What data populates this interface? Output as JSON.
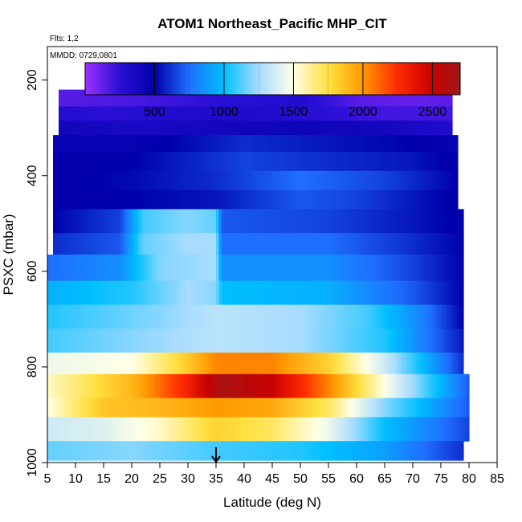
{
  "chart_data": {
    "type": "heatmap",
    "title": "ATOM1 Northeast_Pacific MHP_CIT",
    "flights_label": "Flts: 1,2",
    "mmdd_label": "MMDD: 0729,0801",
    "xlabel": "Latitude (deg N)",
    "ylabel": "PSXC (mbar)",
    "xlim": [
      5,
      85
    ],
    "ylim": [
      1000,
      130
    ],
    "x_ticks": [
      "5",
      "10",
      "15",
      "20",
      "25",
      "30",
      "35",
      "40",
      "45",
      "50",
      "55",
      "60",
      "65",
      "70",
      "75",
      "80",
      "85"
    ],
    "y_ticks": [
      "200",
      "400",
      "600",
      "800",
      "1000"
    ],
    "colorbar": {
      "range": [
        0,
        2700
      ],
      "ticks": [
        "500",
        "1000",
        "1500",
        "2000",
        "2500"
      ],
      "stops": [
        {
          "v": 0,
          "c": "#9b30ff"
        },
        {
          "v": 250,
          "c": "#2a0fd6"
        },
        {
          "v": 500,
          "c": "#0000aa"
        },
        {
          "v": 750,
          "c": "#1f6fff"
        },
        {
          "v": 1000,
          "c": "#00bfff"
        },
        {
          "v": 1250,
          "c": "#a8dcff"
        },
        {
          "v": 1500,
          "c": "#ffffe6"
        },
        {
          "v": 1750,
          "c": "#ffe040"
        },
        {
          "v": 2000,
          "c": "#ff9a00"
        },
        {
          "v": 2250,
          "c": "#ff2a00"
        },
        {
          "v": 2500,
          "c": "#c80000"
        },
        {
          "v": 2700,
          "c": "#a01818"
        }
      ]
    },
    "marker_latitude": 35,
    "layers": [
      {
        "p_top": 220,
        "p_bot": 255,
        "lat_min": 7,
        "lat_max": 77,
        "profile": [
          [
            7,
            150
          ],
          [
            20,
            180
          ],
          [
            35,
            250
          ],
          [
            50,
            300
          ],
          [
            60,
            150
          ],
          [
            70,
            120
          ],
          [
            77,
            150
          ]
        ]
      },
      {
        "p_top": 255,
        "p_bot": 285,
        "lat_min": 7,
        "lat_max": 77,
        "profile": [
          [
            7,
            300
          ],
          [
            15,
            250
          ],
          [
            25,
            300
          ],
          [
            40,
            320
          ],
          [
            55,
            250
          ],
          [
            65,
            200
          ],
          [
            77,
            200
          ]
        ]
      },
      {
        "p_top": 285,
        "p_bot": 315,
        "lat_min": 7,
        "lat_max": 77,
        "profile": [
          [
            7,
            400
          ],
          [
            20,
            350
          ],
          [
            35,
            380
          ],
          [
            50,
            420
          ],
          [
            65,
            380
          ],
          [
            77,
            300
          ]
        ]
      },
      {
        "p_top": 315,
        "p_bot": 350,
        "lat_min": 6,
        "lat_max": 78,
        "profile": [
          [
            6,
            450
          ],
          [
            20,
            450
          ],
          [
            40,
            600
          ],
          [
            55,
            550
          ],
          [
            70,
            500
          ],
          [
            78,
            450
          ]
        ]
      },
      {
        "p_top": 350,
        "p_bot": 390,
        "lat_min": 6,
        "lat_max": 78,
        "profile": [
          [
            6,
            480
          ],
          [
            20,
            500
          ],
          [
            40,
            650
          ],
          [
            55,
            600
          ],
          [
            70,
            550
          ],
          [
            78,
            480
          ]
        ]
      },
      {
        "p_top": 390,
        "p_bot": 430,
        "lat_min": 6,
        "lat_max": 78,
        "profile": [
          [
            6,
            480
          ],
          [
            20,
            520
          ],
          [
            35,
            600
          ],
          [
            50,
            750
          ],
          [
            65,
            650
          ],
          [
            78,
            500
          ]
        ]
      },
      {
        "p_top": 430,
        "p_bot": 470,
        "lat_min": 6,
        "lat_max": 78,
        "profile": [
          [
            6,
            480
          ],
          [
            20,
            500
          ],
          [
            35,
            550
          ],
          [
            50,
            700
          ],
          [
            60,
            650
          ],
          [
            78,
            480
          ]
        ]
      },
      {
        "p_top": 470,
        "p_bot": 520,
        "lat_min": 6,
        "lat_max": 79,
        "profile": [
          [
            6,
            500
          ],
          [
            18,
            650
          ],
          [
            22,
            1100
          ],
          [
            30,
            1200
          ],
          [
            35,
            1150
          ],
          [
            36,
            700
          ],
          [
            55,
            650
          ],
          [
            70,
            550
          ],
          [
            79,
            480
          ]
        ]
      },
      {
        "p_top": 520,
        "p_bot": 565,
        "lat_min": 6,
        "lat_max": 79,
        "profile": [
          [
            6,
            600
          ],
          [
            18,
            700
          ],
          [
            22,
            1150
          ],
          [
            30,
            1250
          ],
          [
            35,
            1250
          ],
          [
            36,
            750
          ],
          [
            55,
            750
          ],
          [
            70,
            600
          ],
          [
            79,
            500
          ]
        ]
      },
      {
        "p_top": 565,
        "p_bot": 620,
        "lat_min": 5,
        "lat_max": 79,
        "profile": [
          [
            5,
            750
          ],
          [
            18,
            850
          ],
          [
            25,
            1200
          ],
          [
            35,
            1250
          ],
          [
            36,
            850
          ],
          [
            55,
            850
          ],
          [
            70,
            650
          ],
          [
            79,
            500
          ]
        ]
      },
      {
        "p_top": 620,
        "p_bot": 670,
        "lat_min": 5,
        "lat_max": 79,
        "profile": [
          [
            5,
            950
          ],
          [
            20,
            1050
          ],
          [
            30,
            1250
          ],
          [
            35,
            1200
          ],
          [
            36,
            1000
          ],
          [
            55,
            950
          ],
          [
            70,
            700
          ],
          [
            79,
            500
          ]
        ]
      },
      {
        "p_top": 670,
        "p_bot": 720,
        "lat_min": 5,
        "lat_max": 79,
        "profile": [
          [
            5,
            1050
          ],
          [
            25,
            1200
          ],
          [
            35,
            1300
          ],
          [
            50,
            1250
          ],
          [
            62,
            1100
          ],
          [
            72,
            800
          ],
          [
            79,
            500
          ]
        ]
      },
      {
        "p_top": 720,
        "p_bot": 770,
        "lat_min": 5,
        "lat_max": 79,
        "profile": [
          [
            5,
            1100
          ],
          [
            20,
            1200
          ],
          [
            35,
            1300
          ],
          [
            50,
            1250
          ],
          [
            65,
            1050
          ],
          [
            79,
            550
          ]
        ]
      },
      {
        "p_top": 770,
        "p_bot": 815,
        "lat_min": 5,
        "lat_max": 79,
        "profile": [
          [
            5,
            1450
          ],
          [
            20,
            1500
          ],
          [
            28,
            1750
          ],
          [
            35,
            2050
          ],
          [
            45,
            2050
          ],
          [
            55,
            1800
          ],
          [
            65,
            1350
          ],
          [
            79,
            600
          ]
        ]
      },
      {
        "p_top": 815,
        "p_bot": 865,
        "lat_min": 5,
        "lat_max": 80,
        "profile": [
          [
            5,
            1550
          ],
          [
            20,
            1900
          ],
          [
            30,
            2300
          ],
          [
            36,
            2650
          ],
          [
            45,
            2500
          ],
          [
            55,
            2050
          ],
          [
            65,
            1500
          ],
          [
            80,
            700
          ]
        ]
      },
      {
        "p_top": 865,
        "p_bot": 905,
        "lat_min": 5,
        "lat_max": 80,
        "profile": [
          [
            5,
            1500
          ],
          [
            15,
            1850
          ],
          [
            25,
            1900
          ],
          [
            35,
            2000
          ],
          [
            45,
            1950
          ],
          [
            55,
            1700
          ],
          [
            65,
            1200
          ],
          [
            80,
            700
          ]
        ]
      },
      {
        "p_top": 905,
        "p_bot": 955,
        "lat_min": 5,
        "lat_max": 80,
        "profile": [
          [
            5,
            1350
          ],
          [
            15,
            1400
          ],
          [
            25,
            1550
          ],
          [
            35,
            1800
          ],
          [
            45,
            1700
          ],
          [
            55,
            1450
          ],
          [
            65,
            1000
          ],
          [
            80,
            650
          ]
        ]
      },
      {
        "p_top": 955,
        "p_bot": 995,
        "lat_min": 5,
        "lat_max": 79,
        "profile": [
          [
            5,
            1150
          ],
          [
            20,
            1200
          ],
          [
            35,
            1100
          ],
          [
            50,
            1050
          ],
          [
            65,
            900
          ],
          [
            79,
            600
          ]
        ]
      }
    ]
  }
}
